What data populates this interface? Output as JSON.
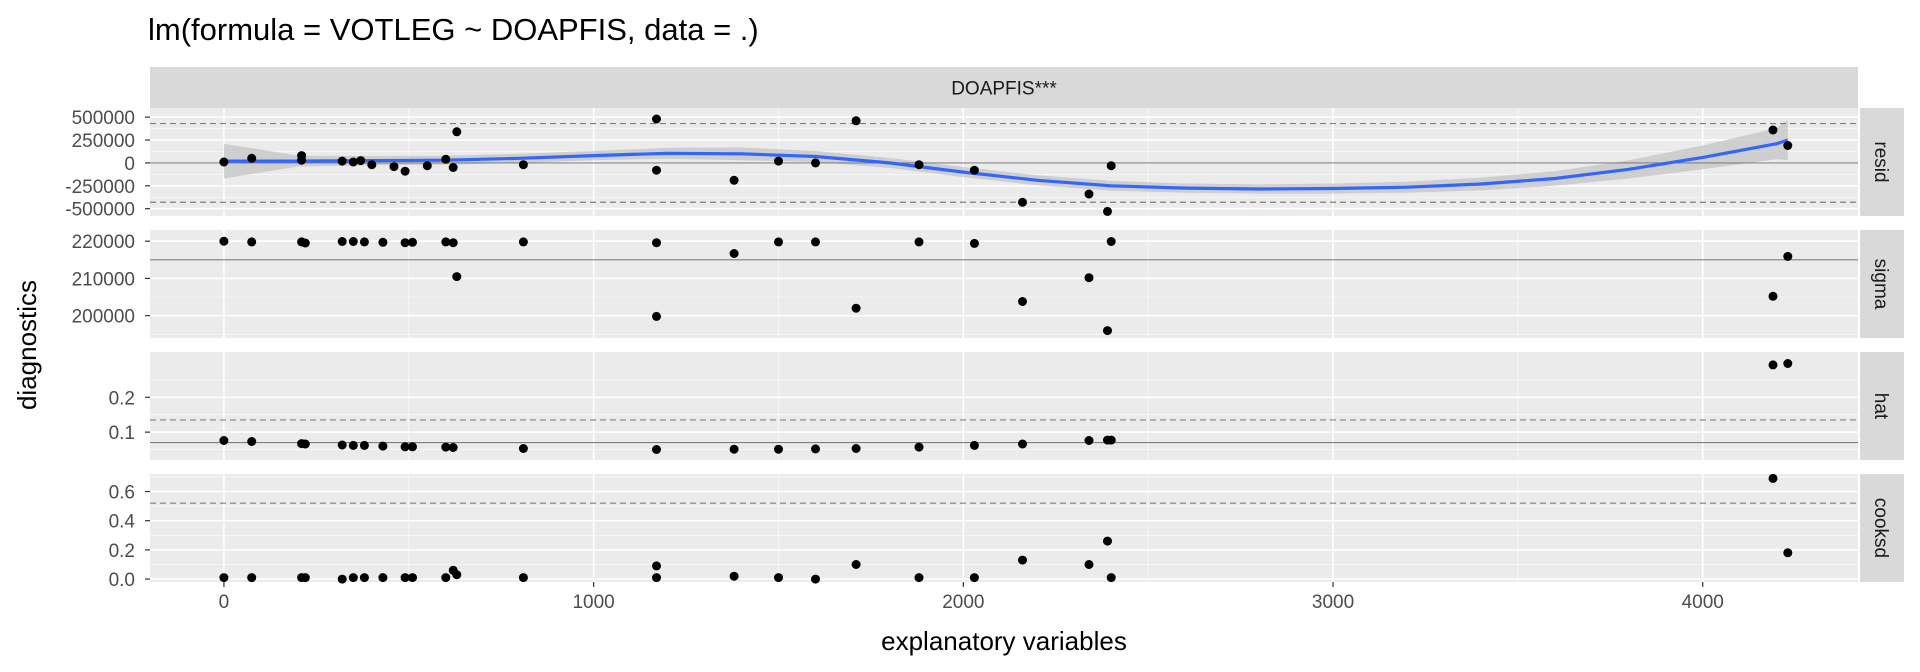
{
  "chart_data": {
    "type": "scatter",
    "title": "lm(formula = VOTLEG ~ DOAPFIS, data = .)",
    "xlabel": "explanatory variables",
    "ylabel": "diagnostics",
    "facet_label": "DOAPFIS***",
    "xlim": [
      -200,
      4420
    ],
    "x_ticks": [
      0,
      1000,
      2000,
      3000,
      4000
    ],
    "x_tick_labels": [
      "0",
      "1000",
      "2000",
      "3000",
      "4000"
    ],
    "grid": true,
    "colors": {
      "panel_bg": "#ebebeb",
      "strip_bg": "#d9d9d9",
      "grid": "#ffffff",
      "point": "#000000",
      "smooth": "#3366ff",
      "ribbon": "#c4c4c4",
      "hline": "#7f7f7f"
    },
    "panels": [
      {
        "name": "resid",
        "ylim": [
          -580000,
          600000
        ],
        "y_ticks": [
          -500000,
          -250000,
          0,
          250000,
          500000
        ],
        "y_tick_labels": [
          "-500000",
          "-250000",
          "0",
          "250000",
          "500000"
        ],
        "ref_solid": 0,
        "ref_dashed": [
          430000,
          -430000
        ],
        "points": [
          [
            0,
            10000
          ],
          [
            75,
            50000
          ],
          [
            210,
            80000
          ],
          [
            210,
            30000
          ],
          [
            320,
            20000
          ],
          [
            350,
            10000
          ],
          [
            370,
            25000
          ],
          [
            400,
            -20000
          ],
          [
            460,
            -40000
          ],
          [
            490,
            -90000
          ],
          [
            550,
            -30000
          ],
          [
            600,
            40000
          ],
          [
            620,
            -50000
          ],
          [
            630,
            340000
          ],
          [
            810,
            -20000
          ],
          [
            1170,
            480000
          ],
          [
            1170,
            -80000
          ],
          [
            1380,
            -190000
          ],
          [
            1500,
            20000
          ],
          [
            1600,
            0
          ],
          [
            1710,
            460000
          ],
          [
            1880,
            -20000
          ],
          [
            2030,
            -80000
          ],
          [
            2160,
            -430000
          ],
          [
            2340,
            -340000
          ],
          [
            2390,
            -530000
          ],
          [
            2400,
            -30000
          ],
          [
            4190,
            360000
          ],
          [
            4230,
            190000
          ]
        ],
        "smooth": [
          [
            0,
            20000
          ],
          [
            200,
            20000
          ],
          [
            400,
            25000
          ],
          [
            600,
            30000
          ],
          [
            800,
            50000
          ],
          [
            1000,
            80000
          ],
          [
            1200,
            105000
          ],
          [
            1400,
            100000
          ],
          [
            1600,
            70000
          ],
          [
            1800,
            0
          ],
          [
            2000,
            -100000
          ],
          [
            2200,
            -190000
          ],
          [
            2400,
            -250000
          ],
          [
            2600,
            -275000
          ],
          [
            2800,
            -285000
          ],
          [
            3000,
            -280000
          ],
          [
            3200,
            -265000
          ],
          [
            3400,
            -230000
          ],
          [
            3600,
            -170000
          ],
          [
            3800,
            -70000
          ],
          [
            4000,
            60000
          ],
          [
            4200,
            210000
          ],
          [
            4230,
            250000
          ]
        ],
        "ribbon_halfwidth": [
          190000,
          60000,
          50000,
          50000,
          50000,
          50000,
          60000,
          70000,
          60000,
          55000,
          55000,
          55000,
          55000,
          50000,
          50000,
          55000,
          60000,
          70000,
          80000,
          100000,
          130000,
          170000,
          220000
        ]
      },
      {
        "name": "sigma",
        "ylim": [
          194000,
          223000
        ],
        "y_ticks": [
          200000,
          210000,
          220000
        ],
        "y_tick_labels": [
          "200000",
          "210000",
          "220000"
        ],
        "ref_solid": 215000,
        "ref_dashed": [],
        "points": [
          [
            0,
            220000
          ],
          [
            75,
            219800
          ],
          [
            210,
            219800
          ],
          [
            220,
            219500
          ],
          [
            320,
            219900
          ],
          [
            350,
            219900
          ],
          [
            380,
            219800
          ],
          [
            430,
            219700
          ],
          [
            490,
            219600
          ],
          [
            510,
            219700
          ],
          [
            600,
            219800
          ],
          [
            620,
            219600
          ],
          [
            630,
            210500
          ],
          [
            810,
            219800
          ],
          [
            1170,
            219600
          ],
          [
            1170,
            199800
          ],
          [
            1380,
            216700
          ],
          [
            1500,
            219800
          ],
          [
            1600,
            219800
          ],
          [
            1710,
            202000
          ],
          [
            1880,
            219800
          ],
          [
            2030,
            219400
          ],
          [
            2160,
            203800
          ],
          [
            2340,
            210200
          ],
          [
            2390,
            196000
          ],
          [
            2400,
            219900
          ],
          [
            4190,
            205200
          ],
          [
            4230,
            215900
          ]
        ]
      },
      {
        "name": "hat",
        "ylim": [
          0.02,
          0.33
        ],
        "y_ticks": [
          0.1,
          0.2
        ],
        "y_tick_labels": [
          "0.1",
          "0.2"
        ],
        "ref_solid": 0.07,
        "ref_dashed": [
          0.135
        ],
        "points": [
          [
            0,
            0.076
          ],
          [
            75,
            0.073
          ],
          [
            210,
            0.067
          ],
          [
            220,
            0.066
          ],
          [
            320,
            0.063
          ],
          [
            350,
            0.062
          ],
          [
            380,
            0.062
          ],
          [
            430,
            0.06
          ],
          [
            490,
            0.058
          ],
          [
            510,
            0.058
          ],
          [
            600,
            0.057
          ],
          [
            620,
            0.056
          ],
          [
            810,
            0.053
          ],
          [
            1170,
            0.05
          ],
          [
            1380,
            0.051
          ],
          [
            1500,
            0.051
          ],
          [
            1600,
            0.052
          ],
          [
            1710,
            0.053
          ],
          [
            1880,
            0.057
          ],
          [
            2030,
            0.062
          ],
          [
            2160,
            0.066
          ],
          [
            2340,
            0.076
          ],
          [
            2390,
            0.077
          ],
          [
            2400,
            0.077
          ],
          [
            4190,
            0.293
          ],
          [
            4230,
            0.297
          ]
        ]
      },
      {
        "name": "cooksd",
        "ylim": [
          -0.02,
          0.72
        ],
        "y_ticks": [
          0.0,
          0.2,
          0.4,
          0.6
        ],
        "y_tick_labels": [
          "0.0",
          "0.2",
          "0.4",
          "0.6"
        ],
        "ref_solid": null,
        "ref_dashed": [
          0.52
        ],
        "points": [
          [
            0,
            0.01
          ],
          [
            75,
            0.01
          ],
          [
            210,
            0.01
          ],
          [
            220,
            0.01
          ],
          [
            320,
            0.0
          ],
          [
            350,
            0.01
          ],
          [
            380,
            0.01
          ],
          [
            430,
            0.01
          ],
          [
            490,
            0.01
          ],
          [
            510,
            0.01
          ],
          [
            600,
            0.01
          ],
          [
            620,
            0.06
          ],
          [
            630,
            0.03
          ],
          [
            810,
            0.01
          ],
          [
            1170,
            0.09
          ],
          [
            1170,
            0.01
          ],
          [
            1380,
            0.02
          ],
          [
            1500,
            0.01
          ],
          [
            1600,
            0.0
          ],
          [
            1710,
            0.1
          ],
          [
            1880,
            0.01
          ],
          [
            2030,
            0.01
          ],
          [
            2160,
            0.13
          ],
          [
            2340,
            0.1
          ],
          [
            2390,
            0.26
          ],
          [
            2400,
            0.01
          ],
          [
            4190,
            0.69
          ],
          [
            4230,
            0.18
          ]
        ]
      }
    ]
  }
}
